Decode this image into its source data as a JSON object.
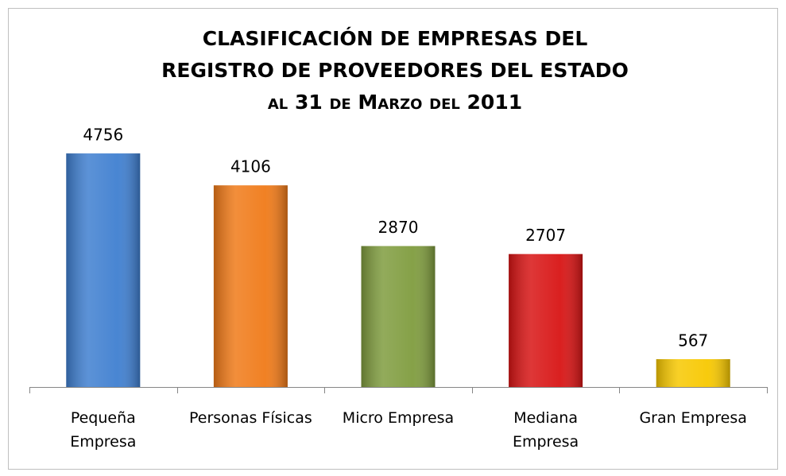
{
  "chart_data": {
    "type": "bar",
    "title": [
      "CLASIFICACIÓN DE EMPRESAS DEL",
      "REGISTRO DE PROVEEDORES DEL ESTADO"
    ],
    "subtitle": "al 31 de Marzo del 2011",
    "categories": [
      "Pequeña\nEmpresa",
      "Personas Físicas",
      "Micro Empresa",
      "Mediana\nEmpresa",
      "Gran Empresa"
    ],
    "values": [
      4756,
      4106,
      2870,
      2707,
      567
    ],
    "colors": [
      "#3f7fd0",
      "#f07a18",
      "#7f9c3e",
      "#d81414",
      "#f7c800"
    ],
    "ylim": [
      0,
      5000
    ]
  }
}
